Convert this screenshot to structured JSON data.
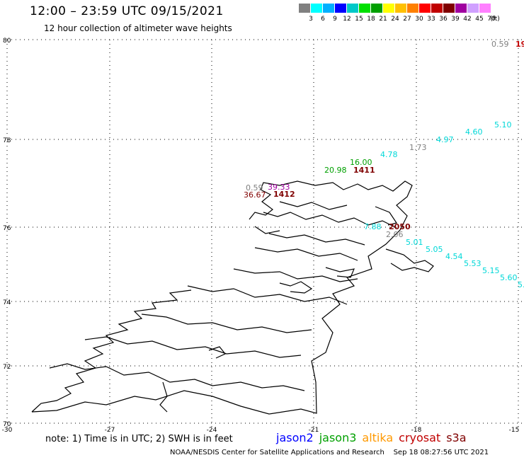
{
  "header": {
    "title": "12:00 – 23:59 UTC 09/15/2021",
    "subtitle": "12 hour collection of altimeter wave heights"
  },
  "colorbar": {
    "swatches": [
      "#808080",
      "#00ffff",
      "#00b0ff",
      "#0000ff",
      "#00c8c8",
      "#00e000",
      "#00a000",
      "#ffff00",
      "#ffc000",
      "#ff8000",
      "#ff0000",
      "#c00000",
      "#800000",
      "#a000a0",
      "#d0a0ff",
      "#ff80ff",
      "#000000"
    ],
    "labels": [
      "3",
      "6",
      "9",
      "12",
      "15",
      "18",
      "21",
      "24",
      "27",
      "30",
      "33",
      "36",
      "39",
      "42",
      "45",
      "70",
      "(ft)"
    ]
  },
  "axes": {
    "lat_labels": [
      "80",
      "78",
      "76",
      "74",
      "72",
      "70"
    ],
    "lon_labels": [
      "-30",
      "-27",
      "-24",
      "-21",
      "-18",
      "-15"
    ]
  },
  "observations": [
    {
      "text": "0.59",
      "color": "#808080"
    },
    {
      "text": "19",
      "color": "#c00000"
    },
    {
      "text": "5.10",
      "color": "#00d8d8"
    },
    {
      "text": "4.60",
      "color": "#00d8d8"
    },
    {
      "text": "4.97",
      "color": "#00d8d8"
    },
    {
      "text": "1.73",
      "color": "#808080"
    },
    {
      "text": "4.78",
      "color": "#00d8d8"
    },
    {
      "text": "16.00",
      "color": "#00a000"
    },
    {
      "text": "20.98",
      "color": "#00a000"
    },
    {
      "text": "1411",
      "color": "#800000"
    },
    {
      "text": "0.59",
      "color": "#808080"
    },
    {
      "text": "39.33",
      "color": "#a000a0"
    },
    {
      "text": "36.67",
      "color": "#800000"
    },
    {
      "text": "1412",
      "color": "#800000"
    },
    {
      "text": "7.88",
      "color": "#00d8d8"
    },
    {
      "text": "2050",
      "color": "#800000"
    },
    {
      "text": "2.06",
      "color": "#808080"
    },
    {
      "text": "5.01",
      "color": "#00d8d8"
    },
    {
      "text": "5.05",
      "color": "#00d8d8"
    },
    {
      "text": "4.54",
      "color": "#00d8d8"
    },
    {
      "text": "5.53",
      "color": "#00d8d8"
    },
    {
      "text": "5.15",
      "color": "#00d8d8"
    },
    {
      "text": "5.60",
      "color": "#00d8d8"
    },
    {
      "text": "5.",
      "color": "#00d8d8"
    }
  ],
  "footer": {
    "note": "note: 1) Time is in UTC; 2) SWH is in feet",
    "legend": [
      {
        "name": "jason2",
        "color": "#0000ff"
      },
      {
        "name": "jason3",
        "color": "#00a000"
      },
      {
        "name": "altika",
        "color": "#ff9900"
      },
      {
        "name": "cryosat",
        "color": "#c00000"
      },
      {
        "name": "s3a",
        "color": "#800000"
      }
    ],
    "credit": "NOAA/NESDIS Center for Satellite Applications and Research",
    "timestamp": "Sep 18 08:27:56 UTC 2021"
  }
}
